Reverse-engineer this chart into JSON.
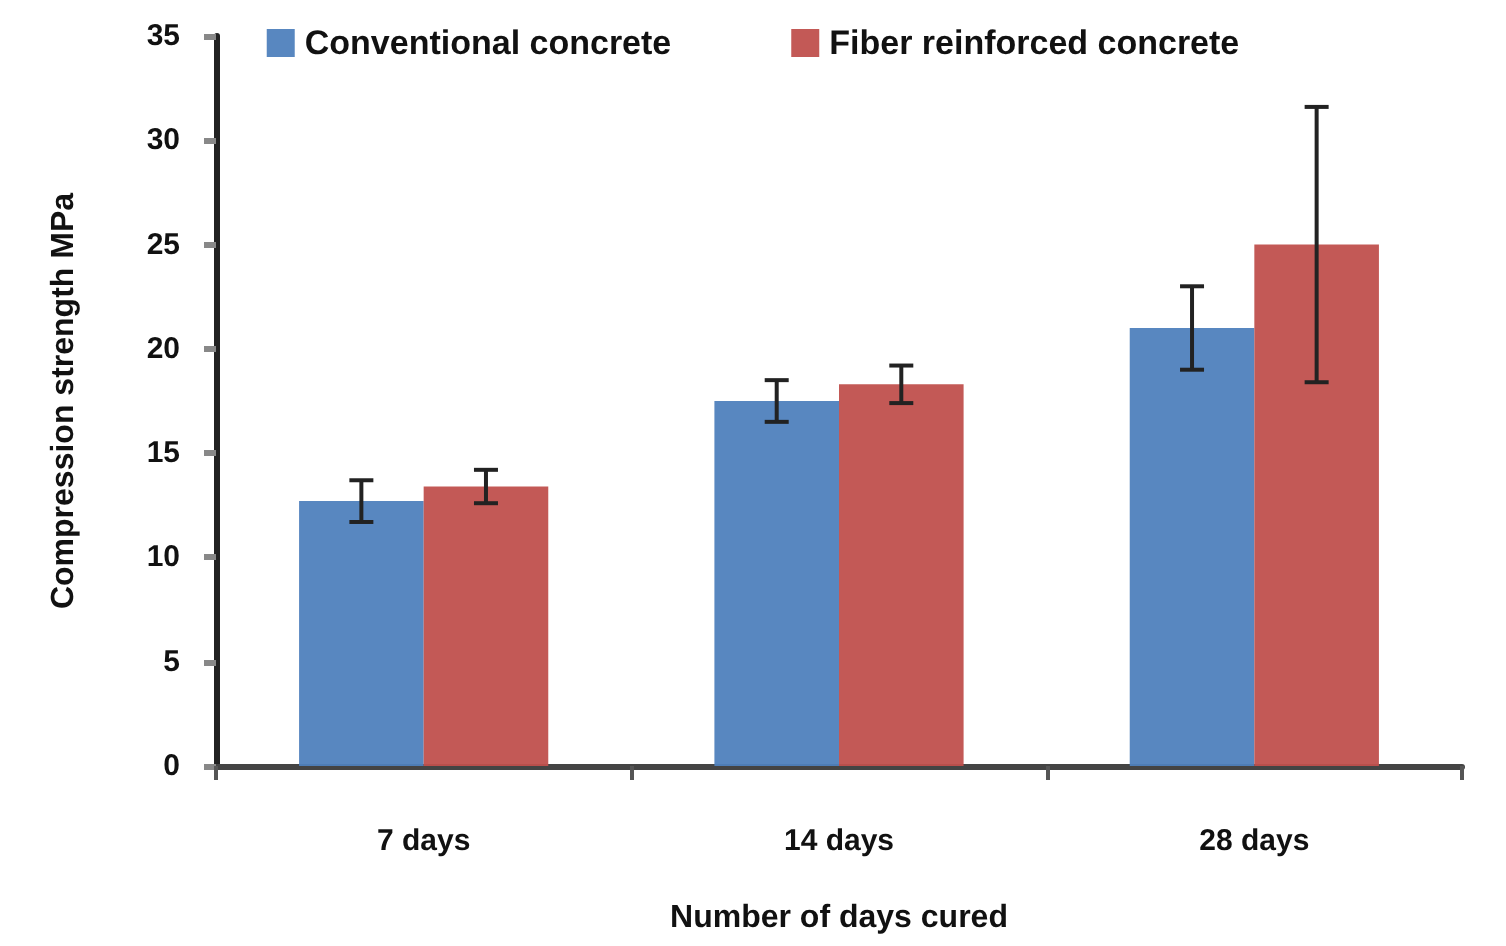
{
  "chart_data": {
    "type": "bar",
    "xlabel": "Number of days cured",
    "ylabel": "Compression strength MPa",
    "categories": [
      "7 days",
      "14 days",
      "28 days"
    ],
    "series": [
      {
        "name": "Conventional concrete",
        "color": "#4f81bd",
        "values": [
          12.7,
          17.5,
          21.0
        ],
        "errors": [
          1.0,
          1.0,
          2.0
        ]
      },
      {
        "name": "Fiber reinforced concrete",
        "color": "#c0504d",
        "values": [
          13.4,
          18.3,
          25.0
        ],
        "errors": [
          0.8,
          0.9,
          6.6
        ]
      }
    ],
    "ylim": [
      0,
      35
    ],
    "yticks": [
      0,
      5,
      10,
      15,
      20,
      25,
      30,
      35
    ],
    "grid": false,
    "legend": "top"
  }
}
